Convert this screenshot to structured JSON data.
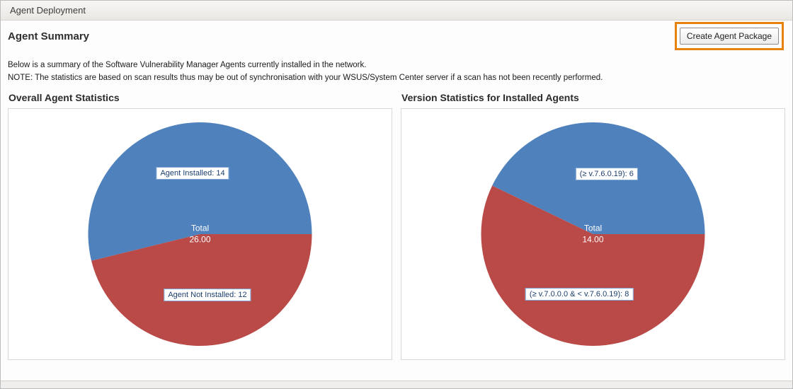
{
  "header": {
    "title": "Agent Deployment"
  },
  "page": {
    "title": "Agent Summary",
    "create_button": "Create Agent Package",
    "description": "Below is a summary of the Software Vulnerability Manager Agents currently installed in the network.",
    "note": "NOTE: The statistics are based on scan results thus may be out of synchronisation with your WSUS/System Center server if a scan has not been recently performed."
  },
  "colors": {
    "pie_blue": "#4f81bd",
    "pie_red": "#b94a48",
    "highlight_orange": "#e8820e",
    "label_border": "#7fa5d3",
    "label_text": "#1c3f6e"
  },
  "chart_data": [
    {
      "type": "pie",
      "title": "Overall Agent Statistics",
      "center_label": "Total",
      "center_value": "26.00",
      "total": 26,
      "legend_position": "none",
      "slices": [
        {
          "label": "Agent Installed: 14",
          "value": 14,
          "color": "#4f81bd"
        },
        {
          "label": "Agent Not Installed: 12",
          "value": 12,
          "color": "#b94a48"
        }
      ]
    },
    {
      "type": "pie",
      "title": "Version Statistics for Installed Agents",
      "center_label": "Total",
      "center_value": "14.00",
      "total": 14,
      "legend_position": "none",
      "slices": [
        {
          "label": "(≥ v.7.6.0.19): 6",
          "value": 6,
          "color": "#4f81bd"
        },
        {
          "label": "(≥ v.7.0.0.0 & < v.7.6.0.19): 8",
          "value": 8,
          "color": "#b94a48"
        }
      ]
    }
  ]
}
